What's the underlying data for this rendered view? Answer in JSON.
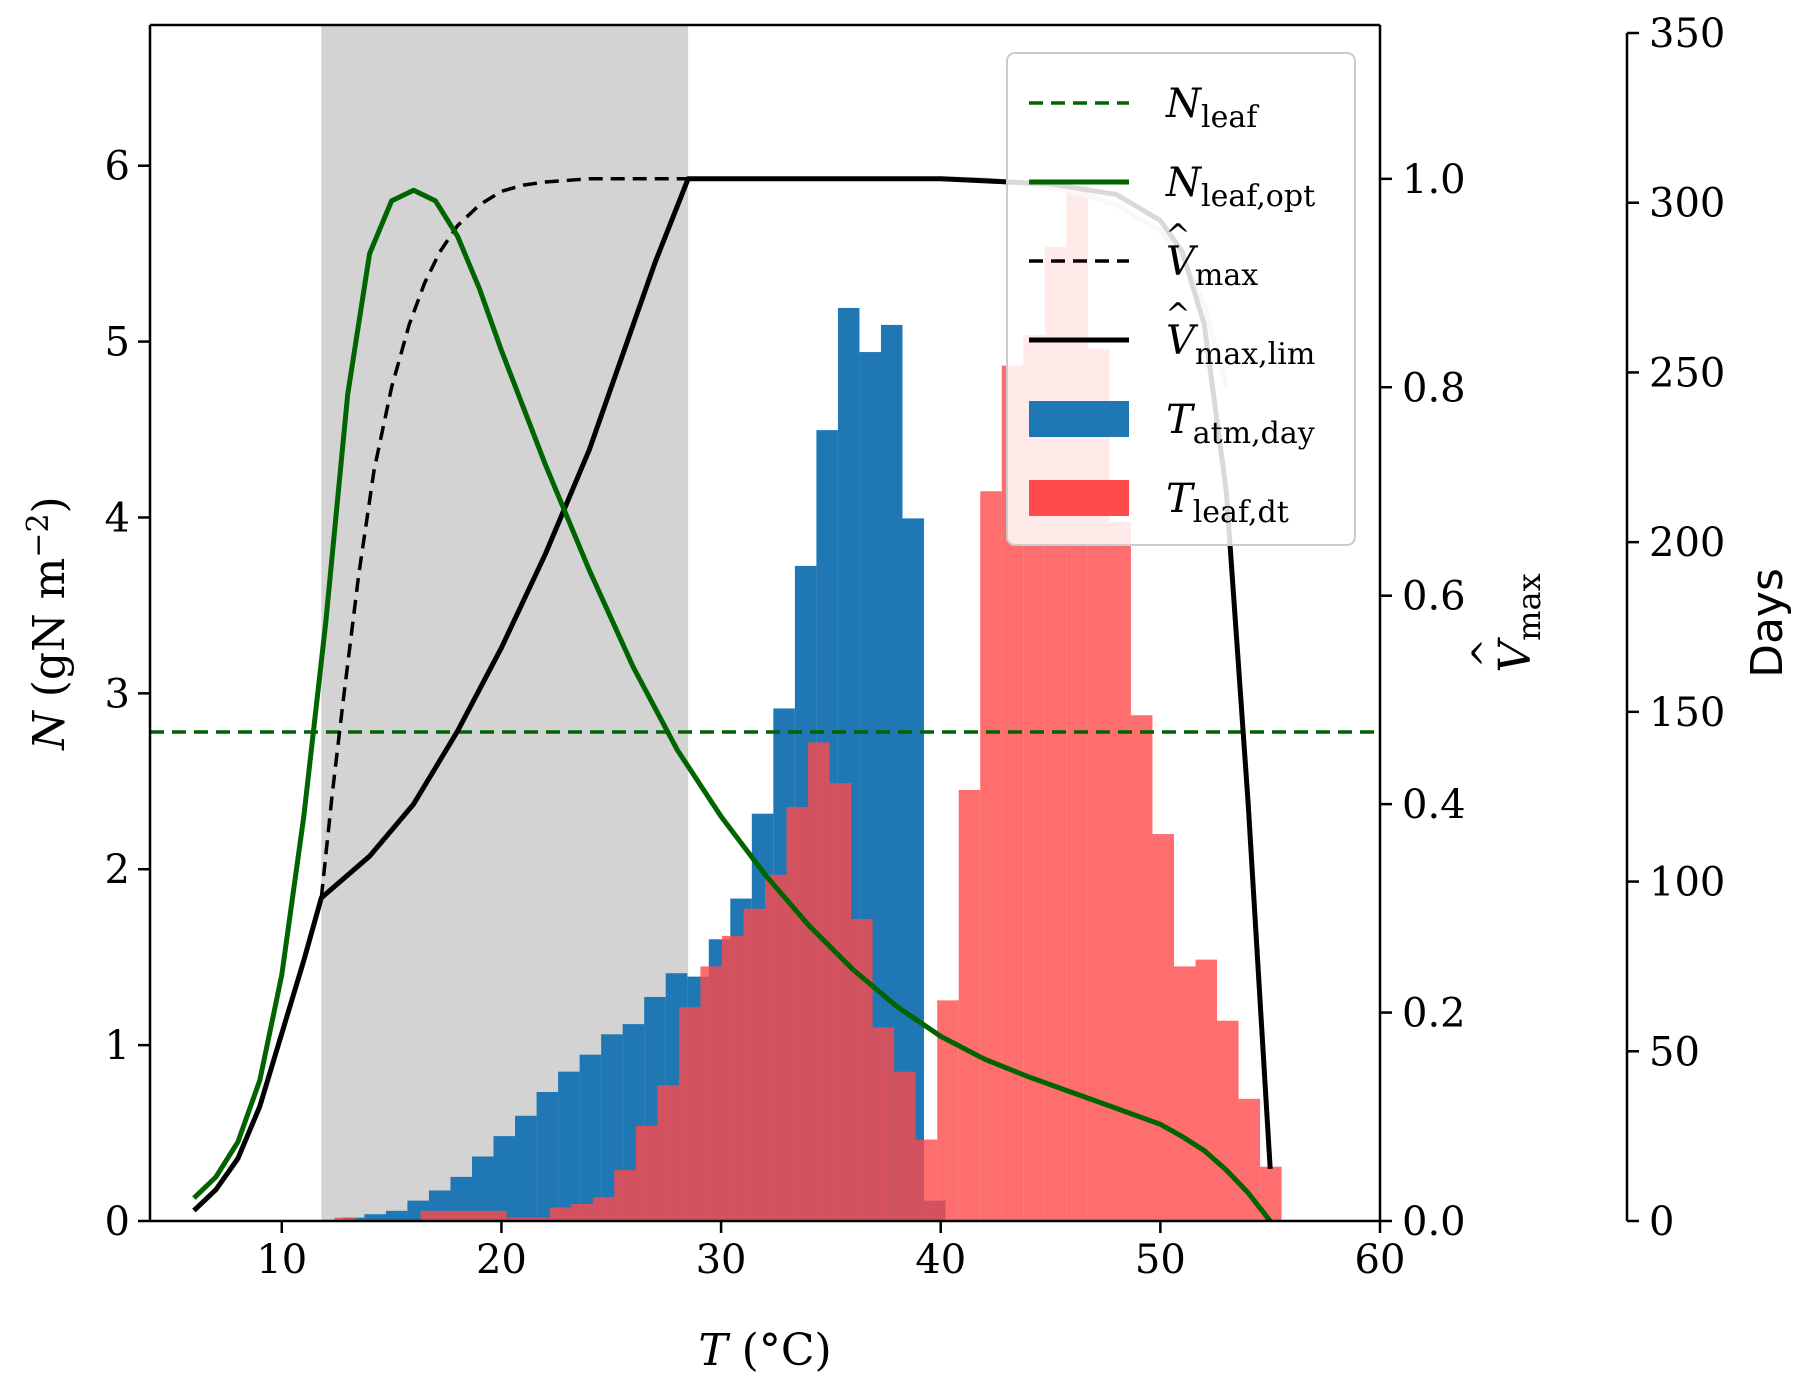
{
  "chart_data": {
    "type": "mixed",
    "x_axis": {
      "label": "T (°C)",
      "xlim": [
        4,
        60
      ],
      "ticks": [
        10,
        20,
        30,
        40,
        50,
        60
      ],
      "tick_labels": [
        "10",
        "20",
        "30",
        "40",
        "50",
        "60"
      ]
    },
    "y_left": {
      "label": "N (gN m−2)",
      "ylim": [
        0,
        6.8
      ],
      "ticks": [
        0,
        1,
        2,
        3,
        4,
        5,
        6
      ],
      "tick_labels": [
        "0",
        "1",
        "2",
        "3",
        "4",
        "5",
        "6"
      ]
    },
    "y_right": {
      "label": "V̂max",
      "ylim": [
        0,
        1.1476
      ],
      "ticks": [
        0.0,
        0.2,
        0.4,
        0.6,
        0.8,
        1.0
      ],
      "tick_labels": [
        "0.0",
        "0.2",
        "0.4",
        "0.6",
        "0.8",
        "1.0"
      ]
    },
    "y_days": {
      "label": "Days",
      "ylim": [
        0,
        350
      ],
      "ticks": [
        0,
        50,
        100,
        150,
        200,
        250,
        300,
        350
      ],
      "tick_labels": [
        "0",
        "50",
        "100",
        "150",
        "200",
        "250",
        "300",
        "350"
      ]
    },
    "shaded_region": {
      "x_range": [
        11.8,
        28.5
      ],
      "color": "#d3d3d3"
    },
    "legend": {
      "placement": "top-right",
      "entries": [
        {
          "name": "N_leaf",
          "base": "N",
          "sub": "leaf",
          "hat": false,
          "style": "dashed",
          "color": "#006400",
          "kind": "line"
        },
        {
          "name": "N_leaf,opt",
          "base": "N",
          "sub": "leaf,opt",
          "hat": false,
          "style": "solid",
          "color": "#006400",
          "kind": "line"
        },
        {
          "name": "V̂_max",
          "base": "V",
          "sub": "max",
          "hat": true,
          "style": "dashed",
          "color": "#000000",
          "kind": "line"
        },
        {
          "name": "V̂_max,lim",
          "base": "V",
          "sub": "max,lim",
          "hat": true,
          "style": "solid",
          "color": "#000000",
          "kind": "line"
        },
        {
          "name": "T_atm,day",
          "base": "T",
          "sub": "atm,day",
          "hat": false,
          "style": "patch",
          "color": "#1f77b4",
          "kind": "patch"
        },
        {
          "name": "T_leaf,dt",
          "base": "T",
          "sub": "leaf,dt",
          "hat": false,
          "style": "patch",
          "color": "#ff4a4a",
          "kind": "patch"
        }
      ]
    },
    "lines": {
      "N_leaf": {
        "axis": "left",
        "color": "#006400",
        "y": 2.78,
        "x_range": [
          4,
          60
        ]
      },
      "N_leaf_opt": {
        "axis": "left",
        "color": "#006400",
        "x": [
          6,
          7,
          8,
          9,
          10,
          11,
          12,
          13,
          14,
          15,
          16,
          17,
          18,
          19,
          20,
          22,
          24,
          26,
          28,
          30,
          32,
          34,
          36,
          38,
          40,
          42,
          44,
          46,
          48,
          50,
          51,
          52,
          53,
          54,
          55
        ],
        "y": [
          0.13,
          0.25,
          0.45,
          0.8,
          1.4,
          2.3,
          3.4,
          4.7,
          5.5,
          5.8,
          5.86,
          5.8,
          5.6,
          5.3,
          4.95,
          4.3,
          3.7,
          3.15,
          2.68,
          2.3,
          1.97,
          1.68,
          1.43,
          1.22,
          1.05,
          0.92,
          0.82,
          0.73,
          0.64,
          0.55,
          0.48,
          0.4,
          0.29,
          0.16,
          0.0
        ]
      },
      "Vmax_hat": {
        "axis": "right",
        "color": "#000000",
        "x": [
          11.8,
          12.3,
          12.8,
          13.5,
          14.2,
          15.0,
          15.8,
          16.5,
          17.2,
          18.0,
          19.0,
          20.0,
          21.0,
          22.0,
          24.0,
          26.0,
          28.5
        ],
        "y": [
          0.31,
          0.41,
          0.5,
          0.62,
          0.72,
          0.8,
          0.86,
          0.9,
          0.93,
          0.955,
          0.975,
          0.988,
          0.994,
          0.997,
          1.0,
          1.0,
          1.0
        ]
      },
      "Vmax_hat_lim": {
        "axis": "right",
        "color": "#000000",
        "x": [
          6,
          7,
          8,
          9,
          10,
          11,
          11.8,
          14,
          16,
          18,
          20,
          22,
          24,
          26,
          27,
          28.5,
          30,
          35,
          40,
          45,
          48,
          50,
          51,
          52,
          53,
          54,
          55
        ],
        "y": [
          0.01,
          0.03,
          0.06,
          0.11,
          0.18,
          0.25,
          0.31,
          0.35,
          0.4,
          0.47,
          0.55,
          0.64,
          0.74,
          0.86,
          0.92,
          1.0,
          1.0,
          1.0,
          1.0,
          0.995,
          0.985,
          0.96,
          0.93,
          0.86,
          0.7,
          0.4,
          0.05
        ]
      },
      "Vmax_hat_gray": {
        "axis": "right",
        "color": "#cccccc",
        "x": [
          40,
          42,
          44,
          46,
          48,
          50,
          51,
          52,
          53
        ],
        "y": [
          1.0,
          0.999,
          0.995,
          0.988,
          0.975,
          0.95,
          0.925,
          0.88,
          0.8
        ]
      }
    },
    "histograms": {
      "bin_edges_start": 11.8,
      "bin_width": 0.98,
      "T_atm_day": {
        "axis": "days",
        "color": "#1f77b4",
        "values": [
          0,
          1,
          2,
          3,
          6,
          9,
          13,
          19,
          25,
          31,
          38,
          44,
          49,
          55,
          58,
          66,
          73,
          72,
          83,
          95,
          120,
          151,
          193,
          233,
          269,
          256,
          264,
          207,
          6
        ]
      },
      "T_leaf_dt": {
        "axis": "days",
        "color": "#ff4a4a",
        "opacity": 0.8,
        "bin_edges_start": 12.4,
        "bin_width": 0.98,
        "values": [
          1,
          0,
          0,
          0,
          3,
          3,
          3,
          3,
          1,
          1,
          4,
          5,
          7,
          15,
          28,
          40,
          63,
          75,
          84,
          92,
          102,
          122,
          141,
          129,
          89,
          57,
          44,
          24,
          65,
          127,
          215,
          252,
          261,
          287,
          305,
          257,
          206,
          149,
          114,
          75,
          77,
          59,
          36,
          16
        ]
      }
    }
  }
}
